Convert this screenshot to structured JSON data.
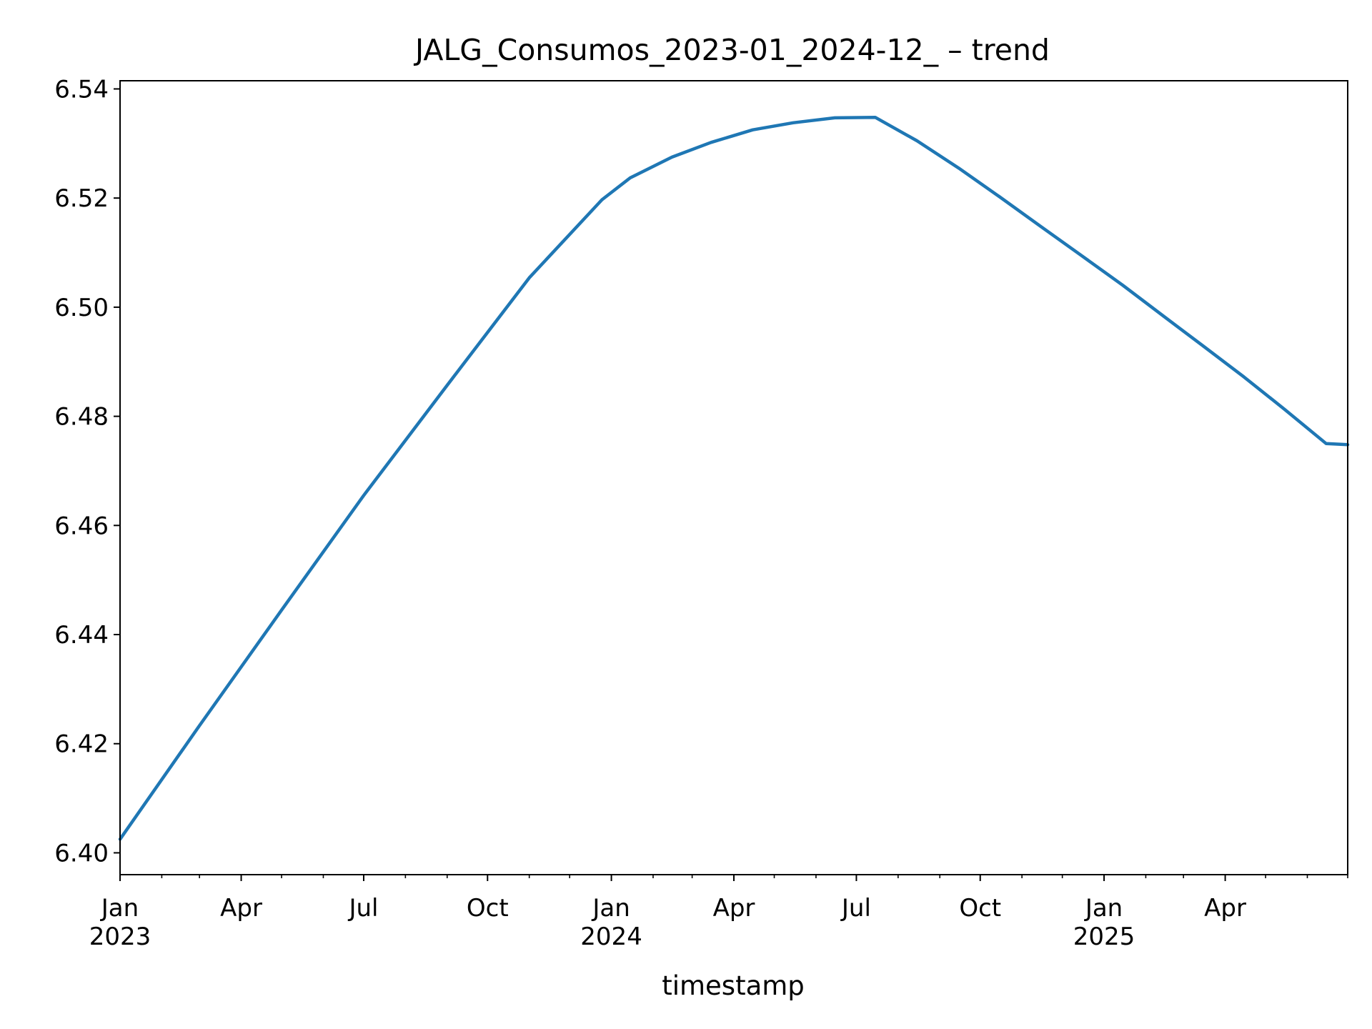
{
  "chart_data": {
    "type": "line",
    "title": "JALG_Consumos_2023-01_2024-12_ – trend",
    "xlabel": "timestamp",
    "ylabel": "",
    "xlim": [
      "2023-01-01",
      "2025-07-01"
    ],
    "ylim": [
      6.396,
      6.5415
    ],
    "grid": false,
    "legend": "none",
    "yticks": [
      6.4,
      6.42,
      6.44,
      6.46,
      6.48,
      6.5,
      6.52,
      6.54
    ],
    "ytick_labels": [
      "6.40",
      "6.42",
      "6.44",
      "6.46",
      "6.48",
      "6.50",
      "6.52",
      "6.54"
    ],
    "xticks_major": [
      {
        "date": "2023-01-01",
        "label": "Jan",
        "year": "2023"
      },
      {
        "date": "2023-04-01",
        "label": "Apr",
        "year": ""
      },
      {
        "date": "2023-07-01",
        "label": "Jul",
        "year": ""
      },
      {
        "date": "2023-10-01",
        "label": "Oct",
        "year": ""
      },
      {
        "date": "2024-01-01",
        "label": "Jan",
        "year": "2024"
      },
      {
        "date": "2024-04-01",
        "label": "Apr",
        "year": ""
      },
      {
        "date": "2024-07-01",
        "label": "Jul",
        "year": ""
      },
      {
        "date": "2024-10-01",
        "label": "Oct",
        "year": ""
      },
      {
        "date": "2025-01-01",
        "label": "Jan",
        "year": "2025"
      },
      {
        "date": "2025-04-01",
        "label": "Apr",
        "year": ""
      }
    ],
    "xticks_minor": [
      "2023-02-01",
      "2023-03-01",
      "2023-05-01",
      "2023-06-01",
      "2023-08-01",
      "2023-09-01",
      "2023-11-01",
      "2023-12-01",
      "2024-02-01",
      "2024-03-01",
      "2024-05-01",
      "2024-06-01",
      "2024-08-01",
      "2024-09-01",
      "2024-11-01",
      "2024-12-01",
      "2025-02-01",
      "2025-03-01",
      "2025-05-01",
      "2025-06-01",
      "2025-07-01"
    ],
    "series": [
      {
        "name": "",
        "color": "#1f77b4",
        "x": [
          "2023-01-01",
          "2023-03-01",
          "2023-05-01",
          "2023-07-01",
          "2023-09-01",
          "2023-11-01",
          "2023-12-25",
          "2024-01-15",
          "2024-02-15",
          "2024-03-15",
          "2024-04-15",
          "2024-05-15",
          "2024-06-15",
          "2024-07-15",
          "2024-08-15",
          "2024-09-15",
          "2024-10-15",
          "2024-11-15",
          "2024-12-15",
          "2025-01-15",
          "2025-02-15",
          "2025-03-15",
          "2025-04-15",
          "2025-05-15",
          "2025-06-15",
          "2025-07-01"
        ],
        "y": [
          6.4025,
          6.4233,
          6.4445,
          6.4655,
          6.4857,
          6.5054,
          6.5197,
          6.5237,
          6.5275,
          6.5302,
          6.5325,
          6.5338,
          6.5347,
          6.5348,
          6.5305,
          6.5255,
          6.5203,
          6.5148,
          6.5095,
          6.504,
          6.4982,
          6.493,
          6.4872,
          6.4813,
          6.475,
          6.4748
        ]
      }
    ]
  }
}
